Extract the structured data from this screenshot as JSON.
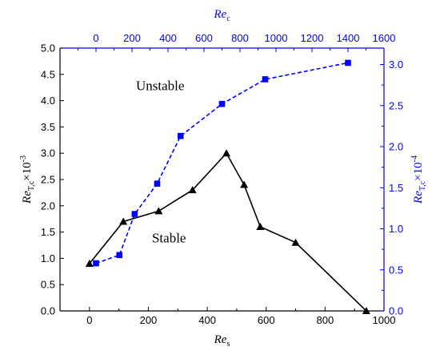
{
  "chart_data": {
    "type": "line",
    "plot_area_label": "dual-axis line chart",
    "axes": {
      "x_bottom": {
        "label_main": "Re",
        "label_sub": "s",
        "range": [
          -100,
          1000
        ],
        "ticks": [
          0,
          200,
          400,
          600,
          800,
          1000
        ],
        "color": "#000000"
      },
      "x_top": {
        "label_main": "Re",
        "label_sub": "c",
        "range": [
          -200,
          1600
        ],
        "ticks": [
          0,
          200,
          400,
          600,
          800,
          1000,
          1200,
          1400,
          1600
        ],
        "color": "#0000ff"
      },
      "y_left": {
        "label_main": "Re",
        "label_sub": "T,c",
        "label_tail": "×10",
        "label_exp": "-3",
        "range": [
          0,
          5
        ],
        "ticks": [
          "0.0",
          "0.5",
          "1.0",
          "1.5",
          "2.0",
          "2.5",
          "3.0",
          "3.5",
          "4.0",
          "4.5",
          "5.0"
        ],
        "color": "#000000"
      },
      "y_right": {
        "label_main": "Re",
        "label_sub": "T,c",
        "label_tail": "×10",
        "label_exp": "-4",
        "range": [
          0,
          3.2
        ],
        "ticks": [
          "0.0",
          "0.5",
          "1.0",
          "1.5",
          "2.0",
          "2.5",
          "3.0"
        ],
        "color": "#0000ff"
      }
    },
    "series": [
      {
        "axis_x": "x_bottom",
        "axis_y": "y_left",
        "marker": "triangle",
        "line_style": "solid",
        "color": "#000000",
        "x": [
          0,
          115,
          235,
          350,
          465,
          525,
          580,
          700,
          940
        ],
        "y": [
          0.9,
          1.7,
          1.9,
          2.3,
          3.0,
          2.4,
          1.6,
          1.3,
          0.0
        ]
      },
      {
        "axis_x": "x_top",
        "axis_y": "y_right",
        "marker": "square",
        "line_style": "dashed",
        "color": "#0000ff",
        "x": [
          0,
          130,
          215,
          340,
          470,
          700,
          940,
          1400
        ],
        "y": [
          0.58,
          0.68,
          1.18,
          1.55,
          2.13,
          2.52,
          2.82,
          3.02
        ]
      }
    ],
    "annotations": [
      {
        "text": "Unstable",
        "x": 240,
        "y": 4.2
      },
      {
        "text": "Stable",
        "x": 270,
        "y": 1.3
      }
    ],
    "grid": false
  }
}
